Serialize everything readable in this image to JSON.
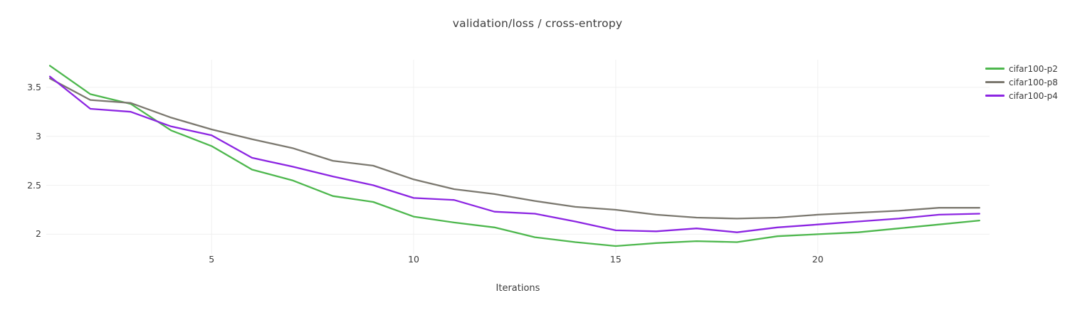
{
  "chart_data": {
    "type": "line",
    "title": "validation/loss / cross-entropy",
    "xlabel": "Iterations",
    "ylabel": "",
    "x": [
      1,
      2,
      3,
      4,
      5,
      6,
      7,
      8,
      9,
      10,
      11,
      12,
      13,
      14,
      15,
      16,
      17,
      18,
      19,
      20,
      21,
      22,
      23,
      24
    ],
    "series": [
      {
        "name": "cifar100-p2",
        "color": "#4db74d",
        "values": [
          3.72,
          3.43,
          3.33,
          3.06,
          2.9,
          2.66,
          2.55,
          2.39,
          2.33,
          2.18,
          2.12,
          2.07,
          1.97,
          1.92,
          1.88,
          1.91,
          1.93,
          1.92,
          1.98,
          2.0,
          2.02,
          2.06,
          2.1,
          2.14
        ]
      },
      {
        "name": "cifar100-p8",
        "color": "#7b786f",
        "values": [
          3.59,
          3.37,
          3.34,
          3.19,
          3.07,
          2.97,
          2.88,
          2.75,
          2.7,
          2.56,
          2.46,
          2.41,
          2.34,
          2.28,
          2.25,
          2.2,
          2.17,
          2.16,
          2.17,
          2.2,
          2.22,
          2.24,
          2.27,
          2.27
        ]
      },
      {
        "name": "cifar100-p4",
        "color": "#8c25e2",
        "values": [
          3.61,
          3.28,
          3.25,
          3.1,
          3.01,
          2.78,
          2.69,
          2.59,
          2.5,
          2.37,
          2.35,
          2.23,
          2.21,
          2.13,
          2.04,
          2.03,
          2.06,
          2.02,
          2.07,
          2.1,
          2.13,
          2.16,
          2.2,
          2.21
        ]
      }
    ],
    "xticks": [
      5,
      10,
      15,
      20
    ],
    "xtick_labels": [
      "5",
      "10",
      "15",
      "20"
    ],
    "yticks": [
      2,
      2.5,
      3,
      3.5
    ],
    "ytick_labels": [
      "2",
      "2.5",
      "3",
      "3.5"
    ],
    "xlim": [
      0.91,
      24.25
    ],
    "ylim": [
      1.8,
      3.81
    ],
    "grid": true,
    "legend_position": "right",
    "colors": {
      "grid": "#f0f0f0",
      "title_text": "#3d3d3d",
      "tick_text": "#3b3b3b",
      "background": "#ffffff"
    }
  }
}
